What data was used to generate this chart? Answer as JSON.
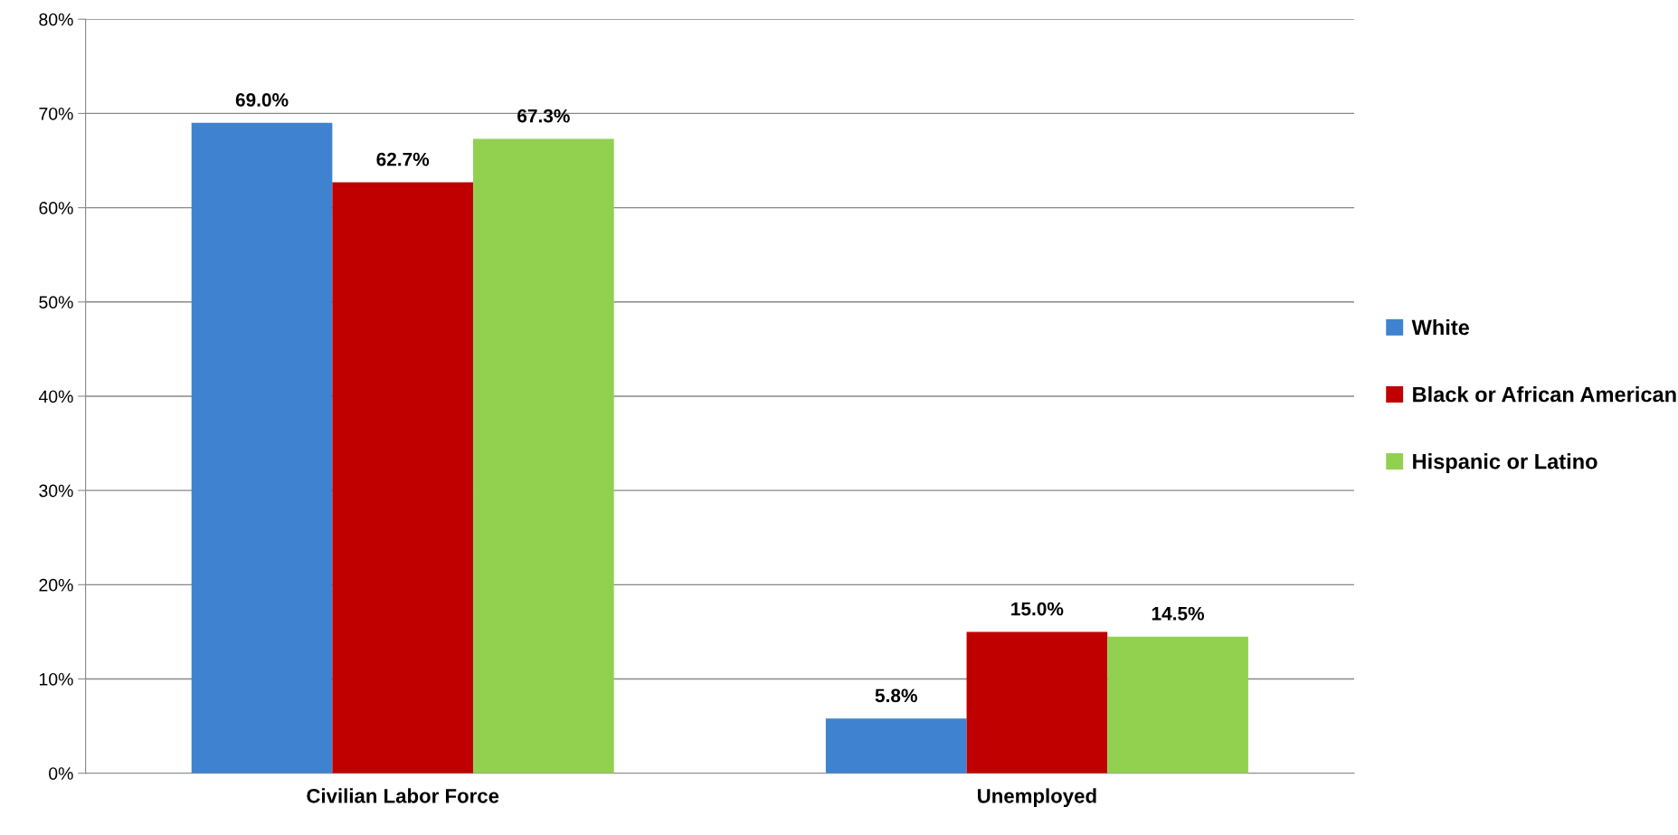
{
  "chart_data": {
    "type": "bar",
    "categories": [
      "Civilian Labor Force",
      "Unemployed"
    ],
    "series": [
      {
        "name": "White",
        "color": "#3f83d0",
        "values": [
          69.0,
          5.8
        ],
        "value_labels": [
          "69.0%",
          "5.8%"
        ]
      },
      {
        "name": "Black or African American",
        "color": "#c00000",
        "values": [
          62.7,
          15.0
        ],
        "value_labels": [
          "62.7%",
          "15.0%"
        ]
      },
      {
        "name": "Hispanic or Latino",
        "color": "#92d050",
        "values": [
          67.3,
          14.5
        ],
        "value_labels": [
          "67.3%",
          "14.5%"
        ]
      }
    ],
    "ylim": [
      0,
      80
    ],
    "yticks": [
      {
        "value": 0,
        "label": "0%"
      },
      {
        "value": 10,
        "label": "10%"
      },
      {
        "value": 20,
        "label": "20%"
      },
      {
        "value": 30,
        "label": "30%"
      },
      {
        "value": 40,
        "label": "40%"
      },
      {
        "value": 50,
        "label": "50%"
      },
      {
        "value": 60,
        "label": "60%"
      },
      {
        "value": 70,
        "label": "70%"
      },
      {
        "value": 80,
        "label": "80%"
      }
    ],
    "grid": "y",
    "legend": "right"
  }
}
